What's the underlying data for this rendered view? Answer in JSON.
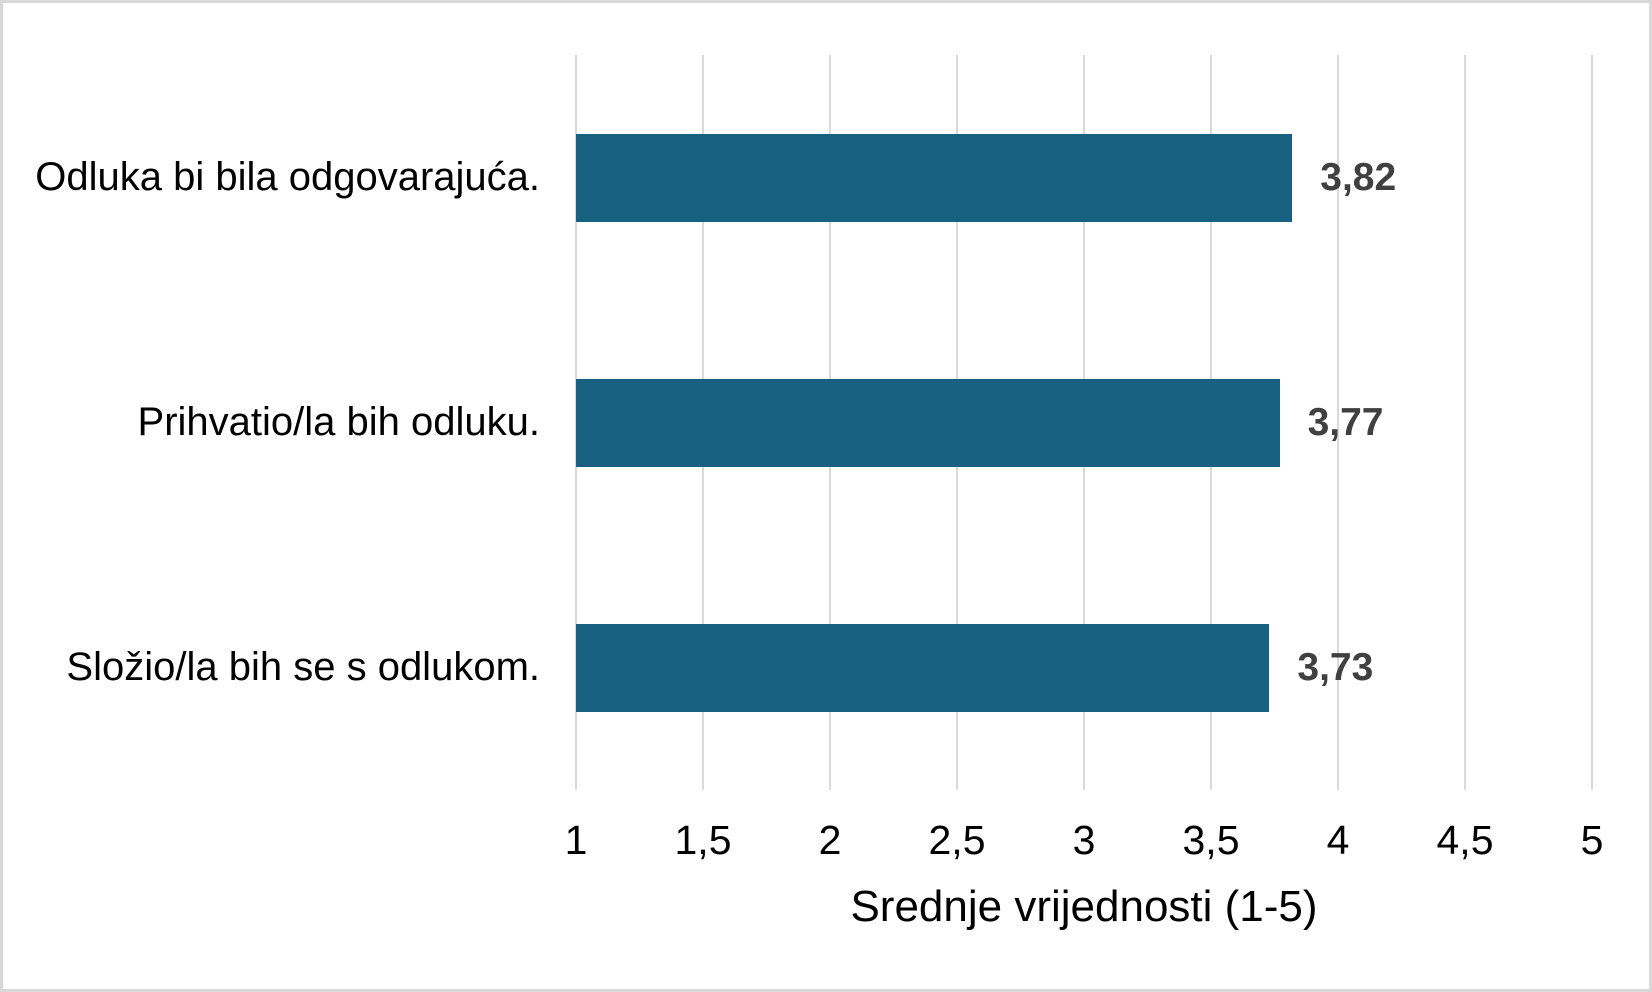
{
  "chart_data": {
    "type": "bar",
    "orientation": "horizontal",
    "title": "",
    "categories": [
      "Odluka bi bila odgovarajuća.",
      "Prihvatio/la bih odluku.",
      "Složio/la bih se s odlukom."
    ],
    "values": [
      3.82,
      3.77,
      3.73
    ],
    "value_labels": [
      "3,82",
      "3,77",
      "3,73"
    ],
    "xlabel": "Srednje vrijednosti (1-5)",
    "ylabel": "",
    "xlim": [
      1,
      5
    ],
    "x_ticks": [
      1,
      1.5,
      2,
      2.5,
      3,
      3.5,
      4,
      4.5,
      5
    ],
    "x_tick_labels": [
      "1",
      "1,5",
      "2",
      "2,5",
      "3",
      "3,5",
      "4",
      "4,5",
      "5"
    ],
    "grid": "vertical",
    "legend": "none",
    "colors": {
      "bar": "#17607F",
      "value_label": "#404040",
      "axis_text": "#000000",
      "gridline": "#D9D9D9",
      "border": "#D9D9D9",
      "background": "#FFFFFF"
    }
  }
}
